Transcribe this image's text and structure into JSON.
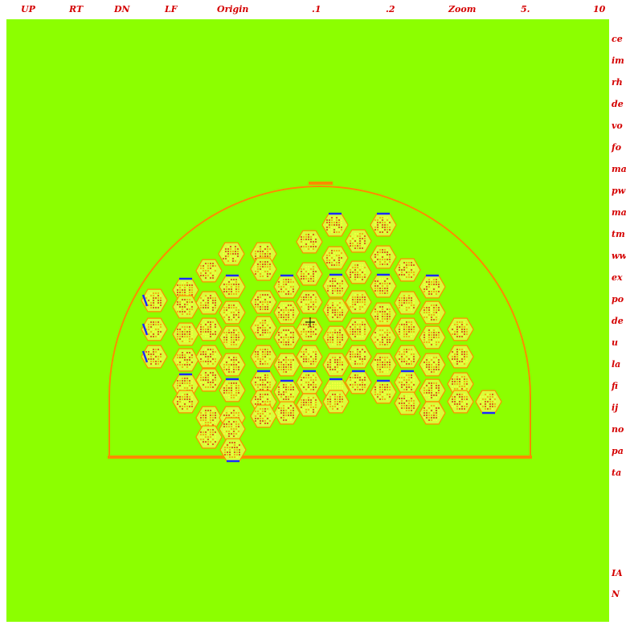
{
  "toolbar": {
    "buttons": [
      {
        "label": "UP"
      },
      {
        "label": "RT"
      },
      {
        "label": "DN"
      },
      {
        "label": "LF"
      },
      {
        "label": "Origin"
      },
      {
        "label": ".1"
      },
      {
        "label": ".2"
      },
      {
        "label": "Zoom"
      },
      {
        "label": "5."
      },
      {
        "label": "10"
      }
    ]
  },
  "side_menu": {
    "items": [
      {
        "label": "ce"
      },
      {
        "label": "im"
      },
      {
        "label": "rh"
      },
      {
        "label": "de"
      },
      {
        "label": "vo"
      },
      {
        "label": "fo"
      },
      {
        "label": "ma"
      },
      {
        "label": "pw"
      },
      {
        "label": "ma"
      },
      {
        "label": "tm"
      },
      {
        "label": "ww"
      },
      {
        "label": "ex"
      },
      {
        "label": "po"
      },
      {
        "label": "de"
      },
      {
        "label": "u"
      },
      {
        "label": "la"
      },
      {
        "label": "fi"
      },
      {
        "label": "ij"
      },
      {
        "label": "no"
      },
      {
        "label": "pa"
      },
      {
        "label": "ta"
      }
    ],
    "bottom_items": [
      {
        "label": "IA"
      },
      {
        "label": "N"
      }
    ]
  },
  "colors": {
    "background": "#8cff00",
    "outline": "#ff8a00",
    "label_red": "#d40000",
    "hex_fill": "#d8ff3a",
    "rod_red": "#e01010",
    "rod_yellow": "#ffff40",
    "edge_blue": "#1a2cff"
  },
  "icons": {
    "cursor": "crosshair-icon"
  }
}
